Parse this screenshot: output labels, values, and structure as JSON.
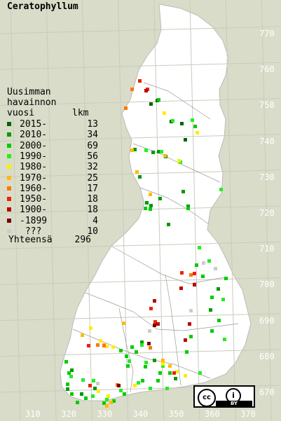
{
  "title": "Ceratophyllum",
  "legend": {
    "heading": [
      "Uusimman",
      "havainnon",
      "vuosi"
    ],
    "count_heading": "lkm",
    "rows": [
      {
        "label": "2015-",
        "count": "13",
        "color": "#006400"
      },
      {
        "label": "2010-",
        "count": "34",
        "color": "#009900"
      },
      {
        "label": "2000-",
        "count": "69",
        "color": "#00cc00"
      },
      {
        "label": "1990-",
        "count": "56",
        "color": "#22ee22"
      },
      {
        "label": "1980-",
        "count": "32",
        "color": "#ffee00"
      },
      {
        "label": "1970-",
        "count": "25",
        "color": "#ffbb00"
      },
      {
        "label": "1960-",
        "count": "17",
        "color": "#ff7700"
      },
      {
        "label": "1950-",
        "count": "18",
        "color": "#ee2200"
      },
      {
        "label": "1900-",
        "count": "18",
        "color": "#bb0000"
      },
      {
        "label": "-1899",
        "count": "4",
        "color": "#770000"
      },
      {
        "label": " ???",
        "count": "10",
        "color": "#cccccc"
      }
    ],
    "total_label": "Yhteensä",
    "total_count": "296"
  },
  "y_ticks": [
    "770",
    "760",
    "750",
    "740",
    "730",
    "720",
    "710",
    "700",
    "690",
    "680",
    "670"
  ],
  "x_ticks": [
    "310",
    "320",
    "330",
    "340",
    "350",
    "360",
    "370"
  ],
  "license": {
    "cc": "cc",
    "by": "BY",
    "info": "i"
  },
  "colors": {
    "background": "#d9dcc8",
    "land": "#ffffff",
    "grid": "#c8ccbc",
    "border": "#999999"
  }
}
